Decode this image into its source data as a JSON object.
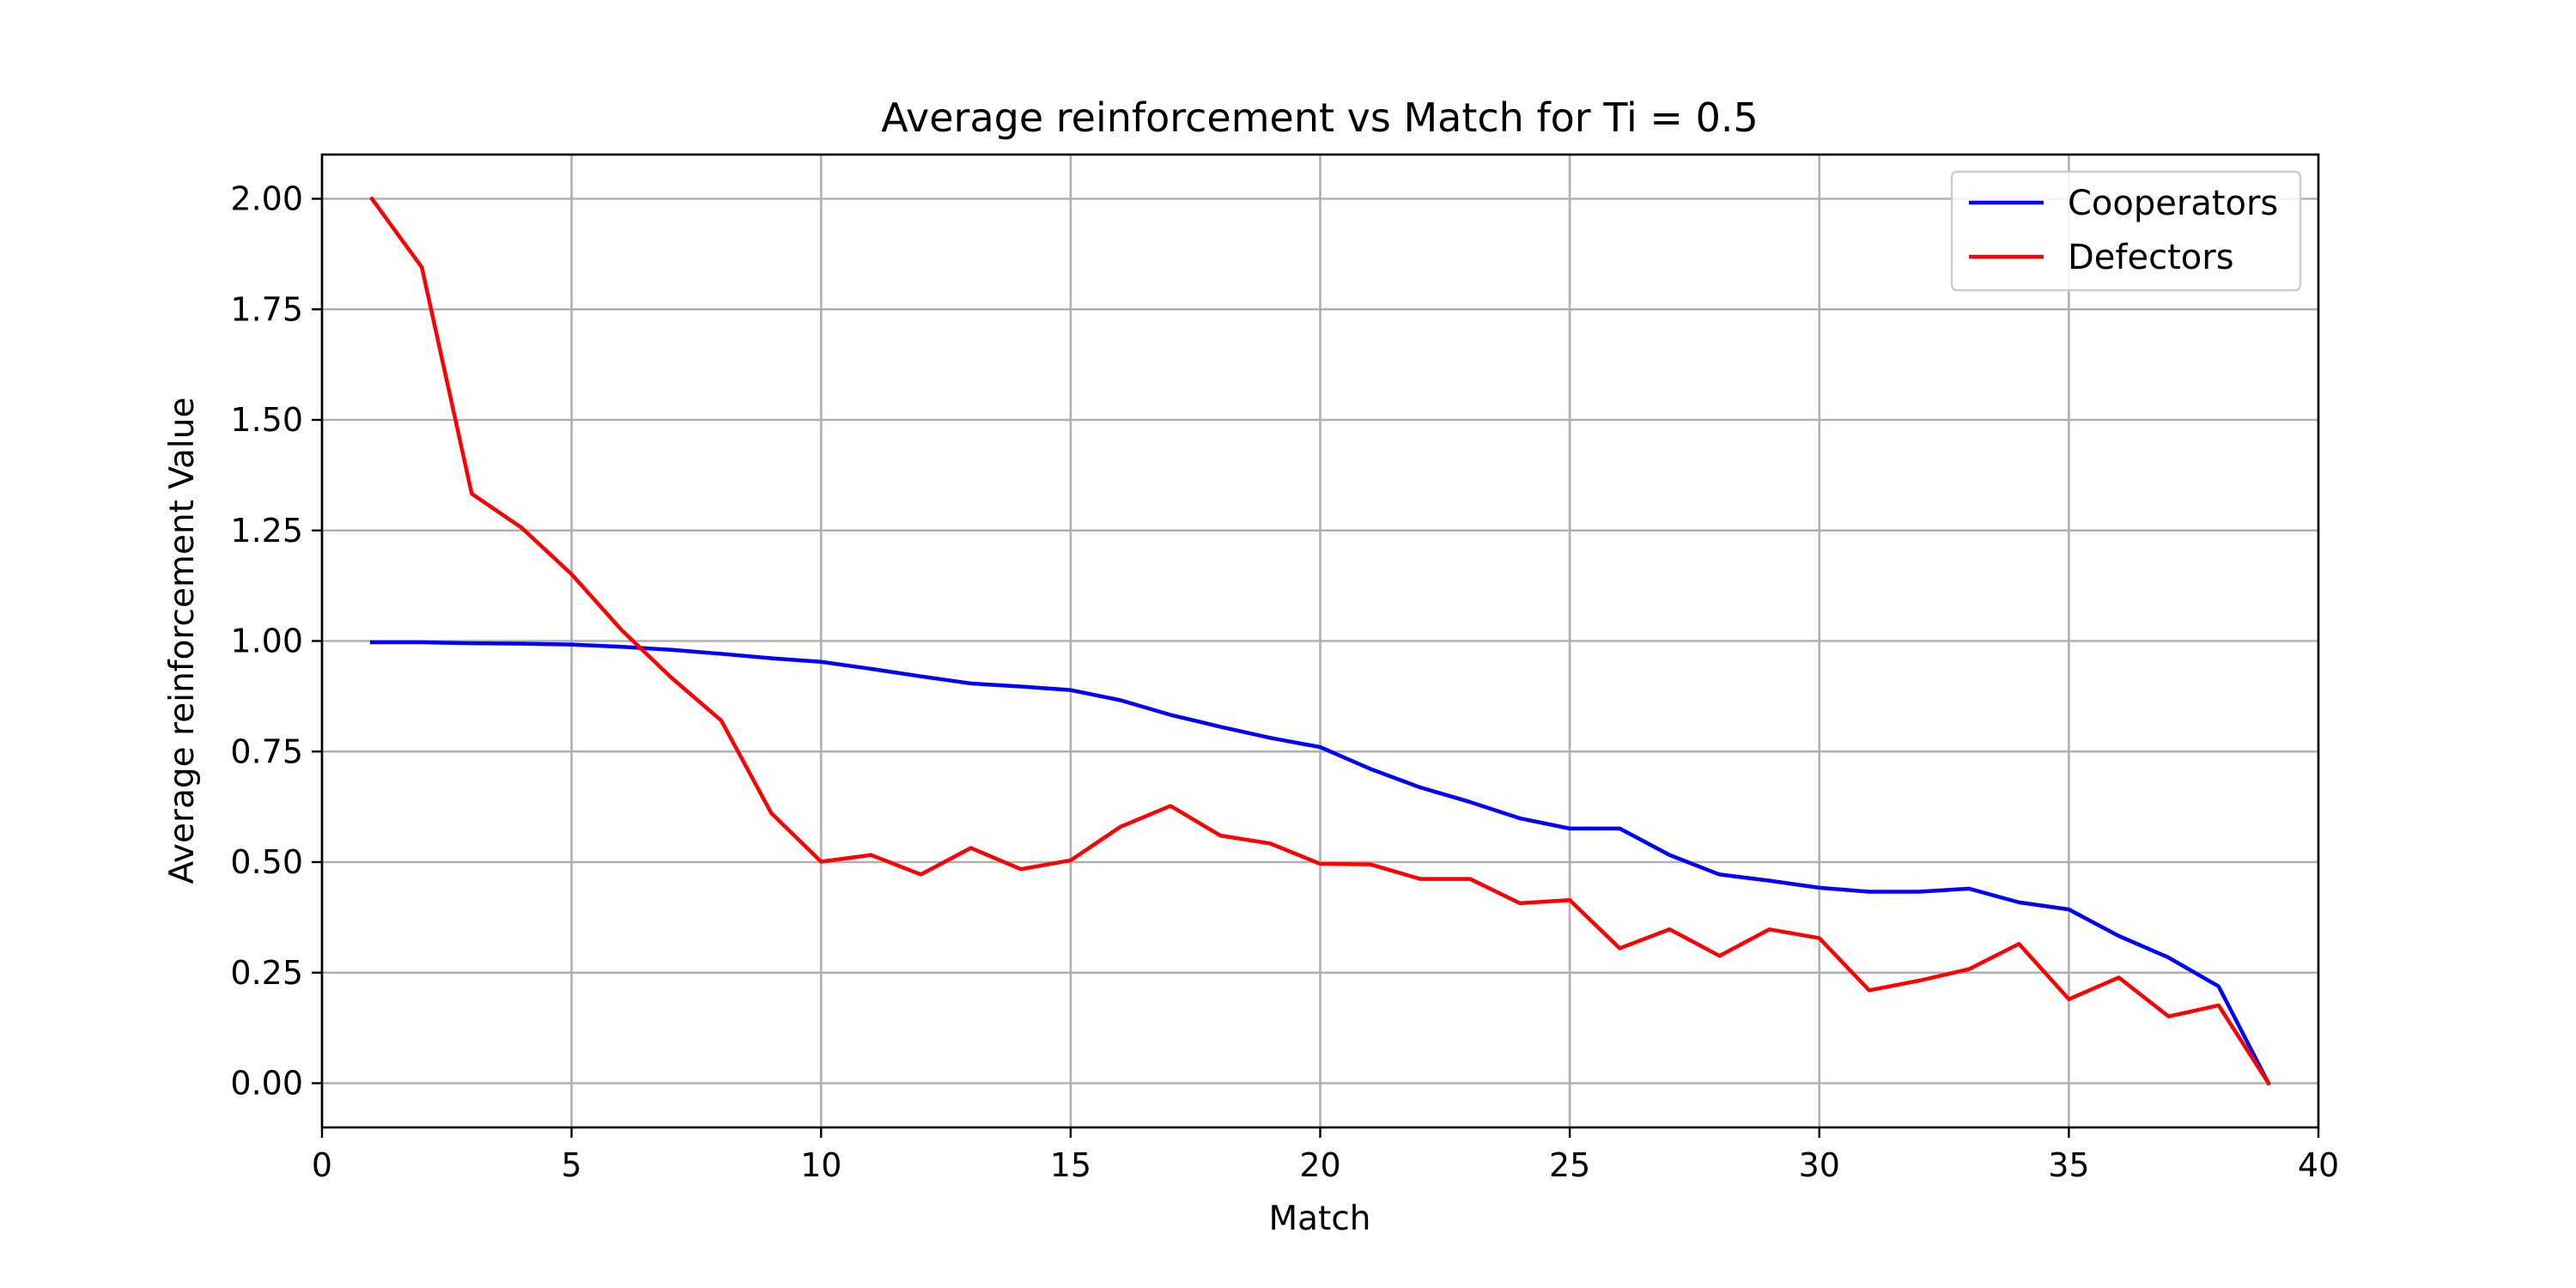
{
  "chart_data": {
    "type": "line",
    "title": "Average reinforcement vs Match for Ti = 0.5",
    "xlabel": "Match",
    "ylabel": "Average reinforcement Value",
    "xlim": [
      0,
      40
    ],
    "ylim": [
      -0.1,
      2.1
    ],
    "xticks": [
      0,
      5,
      10,
      15,
      20,
      25,
      30,
      35,
      40
    ],
    "xtick_labels": [
      "0",
      "5",
      "10",
      "15",
      "20",
      "25",
      "30",
      "35",
      "40"
    ],
    "yticks": [
      0,
      0.25,
      0.5,
      0.75,
      1.0,
      1.25,
      1.5,
      1.75,
      2.0
    ],
    "ytick_labels": [
      "0.00",
      "0.25",
      "0.50",
      "0.75",
      "1.00",
      "1.25",
      "1.50",
      "1.75",
      "2.00"
    ],
    "grid": true,
    "legend_position": "top-right",
    "x": [
      1,
      2,
      3,
      4,
      5,
      6,
      7,
      8,
      9,
      10,
      11,
      12,
      13,
      14,
      15,
      16,
      17,
      18,
      19,
      20,
      21,
      22,
      23,
      24,
      25,
      26,
      27,
      28,
      29,
      30,
      31,
      32,
      33,
      34,
      35,
      36,
      37,
      38,
      39
    ],
    "series": [
      {
        "name": "Cooperators",
        "color": "#0000ff",
        "values": [
          0.997,
          0.997,
          0.995,
          0.994,
          0.992,
          0.987,
          0.98,
          0.971,
          0.961,
          0.953,
          0.937,
          0.92,
          0.904,
          0.897,
          0.889,
          0.866,
          0.833,
          0.806,
          0.781,
          0.76,
          0.711,
          0.669,
          0.636,
          0.599,
          0.576,
          0.576,
          0.516,
          0.472,
          0.458,
          0.442,
          0.433,
          0.433,
          0.44,
          0.409,
          0.393,
          0.333,
          0.284,
          0.219,
          0.0
        ]
      },
      {
        "name": "Defectors",
        "color": "#ff0000",
        "values": [
          2.0,
          1.845,
          1.333,
          1.256,
          1.151,
          1.025,
          0.917,
          0.82,
          0.611,
          0.501,
          0.516,
          0.472,
          0.532,
          0.484,
          0.504,
          0.58,
          0.627,
          0.56,
          0.542,
          0.496,
          0.495,
          0.462,
          0.462,
          0.407,
          0.414,
          0.305,
          0.348,
          0.288,
          0.348,
          0.328,
          0.21,
          0.232,
          0.258,
          0.315,
          0.19,
          0.239,
          0.151,
          0.176,
          0.0
        ]
      }
    ]
  }
}
